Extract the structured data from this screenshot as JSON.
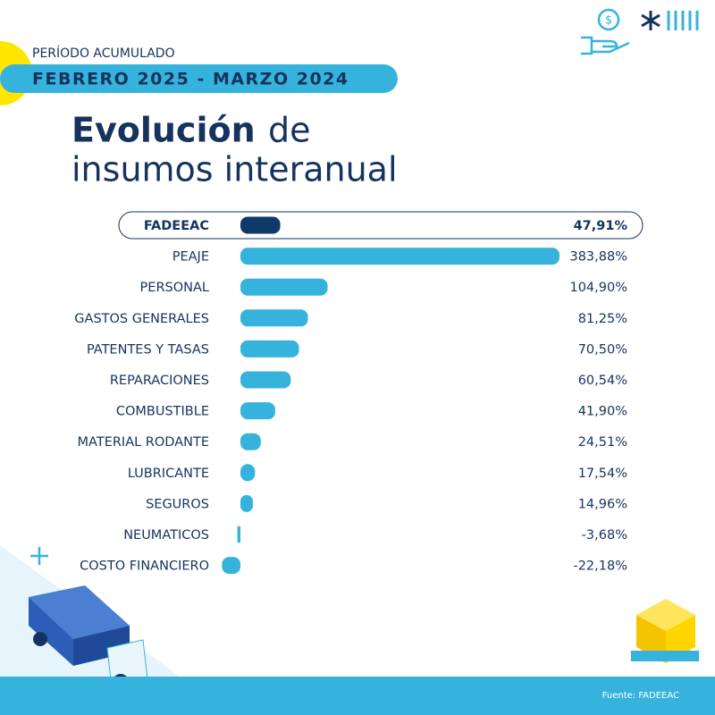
{
  "chart_data": {
    "type": "bar",
    "orientation": "horizontal",
    "period_label": "PERÍODO ACUMULADO",
    "period": "FEBRERO 2025 - MARZO 2024",
    "title_bold": "Evolución",
    "title_rest": [
      "de",
      "insumos interanual"
    ],
    "categories": [
      "FADEEAC",
      "PEAJE",
      "PERSONAL",
      "GASTOS GENERALES",
      "PATENTES Y TASAS",
      "REPARACIONES",
      "COMBUSTIBLE",
      "MATERIAL RODANTE",
      "LUBRICANTE",
      "SEGUROS",
      "NEUMATICOS",
      "COSTO FINANCIERO"
    ],
    "values": [
      47.91,
      383.88,
      104.9,
      81.25,
      70.5,
      60.54,
      41.9,
      24.51,
      17.54,
      14.96,
      -3.68,
      -22.18
    ],
    "value_labels": [
      "47,91%",
      "383,88%",
      "104,90%",
      "81,25%",
      "70,50%",
      "60,54%",
      "41,90%",
      "24,51%",
      "17,54%",
      "14,96%",
      "-3,68%",
      "-22,18%"
    ],
    "highlight_index": 0,
    "color": "#36b3dc",
    "highlight_color": "#0f3a68",
    "source": "Fuente: FADEEAC"
  }
}
